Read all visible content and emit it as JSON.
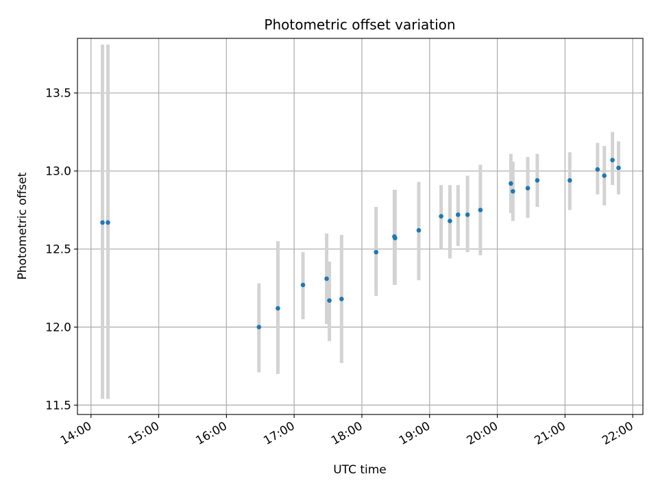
{
  "chart_data": {
    "type": "scatter",
    "title": "Photometric offset variation",
    "xlabel": "UTC time",
    "ylabel": "Photometric offset",
    "x_unit": "hours UTC",
    "xlim": [
      13.8,
      22.15
    ],
    "ylim": [
      11.44,
      13.85
    ],
    "x_ticks": [
      14,
      15,
      16,
      17,
      18,
      19,
      20,
      21,
      22
    ],
    "x_tick_labels": [
      "14:00",
      "15:00",
      "16:00",
      "17:00",
      "18:00",
      "19:00",
      "20:00",
      "21:00",
      "22:00"
    ],
    "y_ticks": [
      11.5,
      12.0,
      12.5,
      13.0,
      13.5
    ],
    "y_tick_labels": [
      "11.5",
      "12.0",
      "12.5",
      "13.0",
      "13.5"
    ],
    "grid": true,
    "legend": "none",
    "marker_color": "#1f77b4",
    "errorbar_color": "#d3d3d3",
    "series": [
      {
        "points": [
          {
            "x": 14.17,
            "y": 12.67,
            "err_low": 11.54,
            "err_high": 13.81
          },
          {
            "x": 14.25,
            "y": 12.67,
            "err_low": 11.54,
            "err_high": 13.81
          },
          {
            "x": 16.48,
            "y": 12.0,
            "err_low": 11.71,
            "err_high": 12.28
          },
          {
            "x": 16.76,
            "y": 12.12,
            "err_low": 11.7,
            "err_high": 12.55
          },
          {
            "x": 17.13,
            "y": 12.27,
            "err_low": 12.05,
            "err_high": 12.48
          },
          {
            "x": 17.48,
            "y": 12.31,
            "err_low": 12.02,
            "err_high": 12.6
          },
          {
            "x": 17.52,
            "y": 12.17,
            "err_low": 11.91,
            "err_high": 12.42
          },
          {
            "x": 17.7,
            "y": 12.18,
            "err_low": 11.77,
            "err_high": 12.59
          },
          {
            "x": 18.21,
            "y": 12.48,
            "err_low": 12.2,
            "err_high": 12.77
          },
          {
            "x": 18.48,
            "y": 12.58,
            "err_low": 12.27,
            "err_high": 12.88
          },
          {
            "x": 18.49,
            "y": 12.57,
            "err_low": 12.27,
            "err_high": 12.88
          },
          {
            "x": 18.84,
            "y": 12.62,
            "err_low": 12.3,
            "err_high": 12.93
          },
          {
            "x": 19.17,
            "y": 12.71,
            "err_low": 12.5,
            "err_high": 12.91
          },
          {
            "x": 19.3,
            "y": 12.68,
            "err_low": 12.44,
            "err_high": 12.91
          },
          {
            "x": 19.42,
            "y": 12.72,
            "err_low": 12.52,
            "err_high": 12.91
          },
          {
            "x": 19.56,
            "y": 12.72,
            "err_low": 12.48,
            "err_high": 12.97
          },
          {
            "x": 19.75,
            "y": 12.75,
            "err_low": 12.46,
            "err_high": 13.04
          },
          {
            "x": 20.2,
            "y": 12.92,
            "err_low": 12.73,
            "err_high": 13.11
          },
          {
            "x": 20.23,
            "y": 12.87,
            "err_low": 12.68,
            "err_high": 13.06
          },
          {
            "x": 20.45,
            "y": 12.89,
            "err_low": 12.7,
            "err_high": 13.09
          },
          {
            "x": 20.59,
            "y": 12.94,
            "err_low": 12.77,
            "err_high": 13.11
          },
          {
            "x": 21.07,
            "y": 12.94,
            "err_low": 12.75,
            "err_high": 13.12
          },
          {
            "x": 21.48,
            "y": 13.01,
            "err_low": 12.85,
            "err_high": 13.18
          },
          {
            "x": 21.58,
            "y": 12.97,
            "err_low": 12.78,
            "err_high": 13.16
          },
          {
            "x": 21.7,
            "y": 13.07,
            "err_low": 12.91,
            "err_high": 13.25
          },
          {
            "x": 21.79,
            "y": 13.02,
            "err_low": 12.85,
            "err_high": 13.19
          }
        ]
      }
    ]
  }
}
